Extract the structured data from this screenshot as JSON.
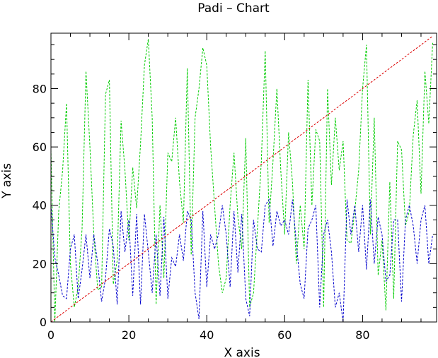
{
  "chart_data": {
    "type": "line",
    "title": "Padi – Chart",
    "xlabel": "X axis",
    "ylabel": "Y axis",
    "xlim": [
      0,
      99
    ],
    "ylim": [
      0,
      99
    ],
    "x_ticks": [
      0,
      20,
      40,
      60,
      80
    ],
    "y_ticks": [
      0,
      20,
      40,
      60,
      80
    ],
    "grid": false,
    "series": [
      {
        "color": "#00cc00",
        "values": [
          59,
          0,
          38,
          52,
          75,
          20,
          5,
          12,
          32,
          86,
          60,
          30,
          11,
          12,
          78,
          83,
          13,
          21,
          69,
          52,
          28,
          53,
          39,
          61,
          88,
          97,
          70,
          6,
          40,
          15,
          58,
          55,
          70,
          48,
          34,
          87,
          23,
          70,
          80,
          94,
          88,
          60,
          40,
          20,
          10,
          15,
          40,
          58,
          36,
          25,
          63,
          5,
          10,
          32,
          55,
          93,
          34,
          55,
          80,
          52,
          30,
          65,
          48,
          20,
          40,
          25,
          83,
          40,
          66,
          62,
          5,
          80,
          47,
          70,
          52,
          62,
          28,
          27,
          38,
          52,
          80,
          95,
          30,
          70,
          16,
          28,
          4,
          48,
          8,
          62,
          59,
          33,
          38,
          64,
          76,
          44,
          86,
          68,
          96
        ]
      },
      {
        "color": "#0000cc",
        "values": [
          40,
          22,
          16,
          9,
          8,
          25,
          30,
          8,
          18,
          30,
          15,
          30,
          20,
          7,
          15,
          32,
          26,
          6,
          38,
          24,
          35,
          9,
          37,
          6,
          37,
          24,
          10,
          30,
          9,
          36,
          8,
          22,
          19,
          30,
          21,
          38,
          35,
          10,
          1,
          38,
          12,
          30,
          25,
          30,
          40,
          30,
          12,
          38,
          17,
          37,
          8,
          2,
          35,
          25,
          24,
          40,
          42,
          26,
          38,
          33,
          35,
          30,
          42,
          27,
          13,
          8,
          32,
          35,
          40,
          5,
          30,
          35,
          24,
          5,
          10,
          0,
          42,
          30,
          40,
          24,
          40,
          18,
          42,
          20,
          36,
          30,
          14,
          16,
          35,
          35,
          7,
          35,
          40,
          33,
          20,
          35,
          40,
          20,
          30
        ]
      },
      {
        "color": "#dd0000",
        "values": [
          0,
          1,
          2,
          3,
          4,
          5,
          6,
          7,
          8,
          9,
          10,
          11,
          12,
          13,
          14,
          15,
          16,
          17,
          18,
          19,
          20,
          21,
          22,
          23,
          24,
          25,
          26,
          27,
          28,
          29,
          30,
          31,
          32,
          33,
          34,
          35,
          36,
          37,
          38,
          39,
          40,
          41,
          42,
          43,
          44,
          45,
          46,
          47,
          48,
          49,
          50,
          51,
          52,
          53,
          54,
          55,
          56,
          57,
          58,
          59,
          60,
          61,
          62,
          63,
          64,
          65,
          66,
          67,
          68,
          69,
          70,
          71,
          72,
          73,
          74,
          75,
          76,
          77,
          78,
          79,
          80,
          81,
          82,
          83,
          84,
          85,
          86,
          87,
          88,
          89,
          90,
          91,
          92,
          93,
          94,
          95,
          96,
          97,
          98
        ]
      }
    ]
  }
}
